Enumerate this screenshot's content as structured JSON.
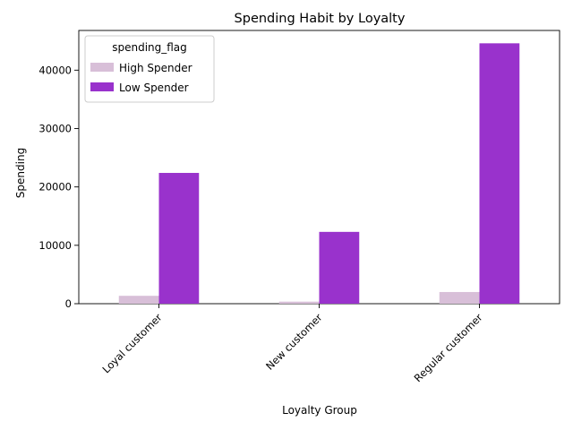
{
  "chart_data": {
    "type": "bar",
    "title": "Spending Habit by Loyalty",
    "xlabel": "Loyalty Group",
    "ylabel": "Spending",
    "categories": [
      "Loyal customer",
      "New customer",
      "Regular customer"
    ],
    "series": [
      {
        "name": "High Spender",
        "color": "#d8bfd8",
        "values": [
          1350,
          350,
          2000
        ]
      },
      {
        "name": "Low Spender",
        "color": "#9932cc",
        "values": [
          22400,
          12300,
          44600
        ]
      }
    ],
    "ylim": [
      0,
      46800
    ],
    "yticks": [
      0,
      10000,
      20000,
      30000,
      40000
    ],
    "ytick_labels": [
      "0",
      "10000",
      "20000",
      "30000",
      "40000"
    ],
    "legend": {
      "title": "spending_flag",
      "placement": "top-left"
    },
    "grid": false
  }
}
